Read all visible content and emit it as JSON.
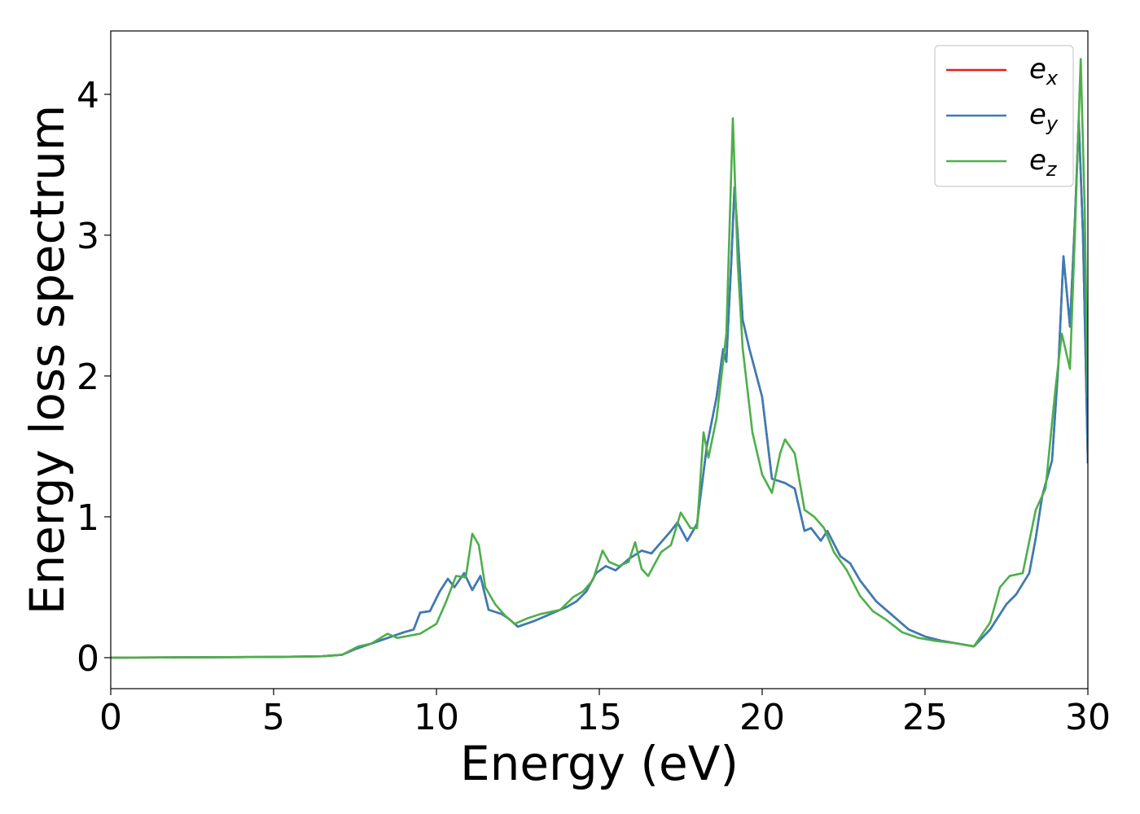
{
  "chart_data": {
    "type": "line",
    "title": "",
    "xlabel": "Energy (eV)",
    "ylabel": "Energy loss spectrum",
    "xlim": [
      0,
      30
    ],
    "ylim": [
      -0.22,
      4.45
    ],
    "xticks": [
      0,
      5,
      10,
      15,
      20,
      25,
      30
    ],
    "yticks": [
      0,
      1,
      2,
      3,
      4
    ],
    "grid": false,
    "legend_position": "top-right",
    "series": [
      {
        "name": "e_x",
        "label_base": "e",
        "label_sub": "x",
        "color": "#e41a1c",
        "points": [
          [
            0,
            0
          ],
          [
            5,
            0.005
          ],
          [
            6.5,
            0.01
          ],
          [
            7.1,
            0.02
          ],
          [
            7.5,
            0.06
          ],
          [
            8,
            0.1
          ],
          [
            8.5,
            0.14
          ],
          [
            9,
            0.18
          ],
          [
            9.3,
            0.2
          ],
          [
            9.5,
            0.32
          ],
          [
            9.8,
            0.33
          ],
          [
            10.1,
            0.47
          ],
          [
            10.35,
            0.56
          ],
          [
            10.55,
            0.5
          ],
          [
            10.85,
            0.6
          ],
          [
            11.1,
            0.48
          ],
          [
            11.35,
            0.58
          ],
          [
            11.6,
            0.34
          ],
          [
            12,
            0.31
          ],
          [
            12.2,
            0.28
          ],
          [
            12.5,
            0.22
          ],
          [
            13,
            0.26
          ],
          [
            13.5,
            0.31
          ],
          [
            14,
            0.36
          ],
          [
            14.3,
            0.4
          ],
          [
            14.6,
            0.47
          ],
          [
            14.9,
            0.6
          ],
          [
            15.2,
            0.65
          ],
          [
            15.5,
            0.62
          ],
          [
            15.9,
            0.7
          ],
          [
            16.3,
            0.76
          ],
          [
            16.6,
            0.74
          ],
          [
            16.9,
            0.82
          ],
          [
            17.2,
            0.9
          ],
          [
            17.4,
            0.96
          ],
          [
            17.7,
            0.83
          ],
          [
            18,
            0.95
          ],
          [
            18.3,
            1.5
          ],
          [
            18.6,
            1.85
          ],
          [
            18.8,
            2.19
          ],
          [
            18.9,
            2.1
          ],
          [
            19.05,
            2.8
          ],
          [
            19.15,
            3.34
          ],
          [
            19.25,
            3.0
          ],
          [
            19.4,
            2.4
          ],
          [
            19.6,
            2.2
          ],
          [
            20,
            1.85
          ],
          [
            20.3,
            1.27
          ],
          [
            20.7,
            1.24
          ],
          [
            21,
            1.2
          ],
          [
            21.3,
            0.9
          ],
          [
            21.5,
            0.92
          ],
          [
            21.8,
            0.83
          ],
          [
            22,
            0.9
          ],
          [
            22.4,
            0.72
          ],
          [
            22.7,
            0.67
          ],
          [
            23,
            0.55
          ],
          [
            23.5,
            0.4
          ],
          [
            24,
            0.3
          ],
          [
            24.5,
            0.2
          ],
          [
            25,
            0.15
          ],
          [
            25.5,
            0.12
          ],
          [
            26,
            0.1
          ],
          [
            26.5,
            0.08
          ],
          [
            27,
            0.2
          ],
          [
            27.5,
            0.38
          ],
          [
            27.8,
            0.45
          ],
          [
            28.2,
            0.6
          ],
          [
            28.4,
            0.85
          ],
          [
            28.6,
            1.15
          ],
          [
            28.9,
            1.4
          ],
          [
            29.1,
            2.1
          ],
          [
            29.25,
            2.85
          ],
          [
            29.45,
            2.35
          ],
          [
            29.6,
            3.1
          ],
          [
            29.72,
            3.82
          ],
          [
            29.85,
            3.0
          ],
          [
            30,
            1.38
          ]
        ]
      },
      {
        "name": "e_y",
        "label_base": "e",
        "label_sub": "y",
        "color": "#377eb8",
        "points": [
          [
            0,
            0
          ],
          [
            5,
            0.005
          ],
          [
            6.5,
            0.01
          ],
          [
            7.1,
            0.02
          ],
          [
            7.5,
            0.06
          ],
          [
            8,
            0.1
          ],
          [
            8.5,
            0.14
          ],
          [
            9,
            0.18
          ],
          [
            9.3,
            0.2
          ],
          [
            9.5,
            0.32
          ],
          [
            9.8,
            0.33
          ],
          [
            10.1,
            0.47
          ],
          [
            10.35,
            0.56
          ],
          [
            10.55,
            0.5
          ],
          [
            10.85,
            0.6
          ],
          [
            11.1,
            0.48
          ],
          [
            11.35,
            0.58
          ],
          [
            11.6,
            0.34
          ],
          [
            12,
            0.31
          ],
          [
            12.2,
            0.28
          ],
          [
            12.5,
            0.22
          ],
          [
            13,
            0.26
          ],
          [
            13.5,
            0.31
          ],
          [
            14,
            0.36
          ],
          [
            14.3,
            0.4
          ],
          [
            14.6,
            0.47
          ],
          [
            14.9,
            0.6
          ],
          [
            15.2,
            0.65
          ],
          [
            15.5,
            0.62
          ],
          [
            15.9,
            0.7
          ],
          [
            16.3,
            0.76
          ],
          [
            16.6,
            0.74
          ],
          [
            16.9,
            0.82
          ],
          [
            17.2,
            0.9
          ],
          [
            17.4,
            0.96
          ],
          [
            17.7,
            0.83
          ],
          [
            18,
            0.95
          ],
          [
            18.3,
            1.5
          ],
          [
            18.6,
            1.85
          ],
          [
            18.8,
            2.19
          ],
          [
            18.9,
            2.1
          ],
          [
            19.05,
            2.8
          ],
          [
            19.15,
            3.34
          ],
          [
            19.25,
            3.0
          ],
          [
            19.4,
            2.4
          ],
          [
            19.6,
            2.2
          ],
          [
            20,
            1.85
          ],
          [
            20.3,
            1.27
          ],
          [
            20.7,
            1.24
          ],
          [
            21,
            1.2
          ],
          [
            21.3,
            0.9
          ],
          [
            21.5,
            0.92
          ],
          [
            21.8,
            0.83
          ],
          [
            22,
            0.9
          ],
          [
            22.4,
            0.72
          ],
          [
            22.7,
            0.67
          ],
          [
            23,
            0.55
          ],
          [
            23.5,
            0.4
          ],
          [
            24,
            0.3
          ],
          [
            24.5,
            0.2
          ],
          [
            25,
            0.15
          ],
          [
            25.5,
            0.12
          ],
          [
            26,
            0.1
          ],
          [
            26.5,
            0.08
          ],
          [
            27,
            0.2
          ],
          [
            27.5,
            0.38
          ],
          [
            27.8,
            0.45
          ],
          [
            28.2,
            0.6
          ],
          [
            28.4,
            0.85
          ],
          [
            28.6,
            1.15
          ],
          [
            28.9,
            1.4
          ],
          [
            29.1,
            2.1
          ],
          [
            29.25,
            2.85
          ],
          [
            29.45,
            2.35
          ],
          [
            29.6,
            3.1
          ],
          [
            29.72,
            3.82
          ],
          [
            29.85,
            3.0
          ],
          [
            30,
            1.38
          ]
        ]
      },
      {
        "name": "e_z",
        "label_base": "e",
        "label_sub": "z",
        "color": "#4daf4a",
        "points": [
          [
            0,
            0
          ],
          [
            5,
            0.005
          ],
          [
            6.5,
            0.01
          ],
          [
            7.1,
            0.02
          ],
          [
            7.6,
            0.08
          ],
          [
            8,
            0.1
          ],
          [
            8.5,
            0.17
          ],
          [
            8.8,
            0.14
          ],
          [
            9.5,
            0.17
          ],
          [
            10,
            0.24
          ],
          [
            10.3,
            0.4
          ],
          [
            10.6,
            0.58
          ],
          [
            10.9,
            0.57
          ],
          [
            11.1,
            0.88
          ],
          [
            11.3,
            0.8
          ],
          [
            11.5,
            0.5
          ],
          [
            11.8,
            0.38
          ],
          [
            12.1,
            0.3
          ],
          [
            12.4,
            0.24
          ],
          [
            12.8,
            0.28
          ],
          [
            13.2,
            0.31
          ],
          [
            13.8,
            0.34
          ],
          [
            14.2,
            0.43
          ],
          [
            14.5,
            0.47
          ],
          [
            14.8,
            0.55
          ],
          [
            15.1,
            0.76
          ],
          [
            15.3,
            0.68
          ],
          [
            15.6,
            0.65
          ],
          [
            15.9,
            0.68
          ],
          [
            16.1,
            0.82
          ],
          [
            16.3,
            0.63
          ],
          [
            16.5,
            0.58
          ],
          [
            16.9,
            0.75
          ],
          [
            17.2,
            0.8
          ],
          [
            17.5,
            1.03
          ],
          [
            17.8,
            0.92
          ],
          [
            18.0,
            0.92
          ],
          [
            18.2,
            1.6
          ],
          [
            18.35,
            1.42
          ],
          [
            18.6,
            1.7
          ],
          [
            18.9,
            2.3
          ],
          [
            19.1,
            3.83
          ],
          [
            19.25,
            2.8
          ],
          [
            19.4,
            2.2
          ],
          [
            19.7,
            1.6
          ],
          [
            20,
            1.3
          ],
          [
            20.3,
            1.17
          ],
          [
            20.55,
            1.45
          ],
          [
            20.7,
            1.55
          ],
          [
            21,
            1.45
          ],
          [
            21.3,
            1.05
          ],
          [
            21.6,
            1.0
          ],
          [
            21.9,
            0.92
          ],
          [
            22.2,
            0.75
          ],
          [
            22.6,
            0.62
          ],
          [
            23,
            0.44
          ],
          [
            23.4,
            0.33
          ],
          [
            23.8,
            0.27
          ],
          [
            24.3,
            0.18
          ],
          [
            24.8,
            0.14
          ],
          [
            25.3,
            0.12
          ],
          [
            26,
            0.1
          ],
          [
            26.5,
            0.08
          ],
          [
            27,
            0.25
          ],
          [
            27.3,
            0.5
          ],
          [
            27.6,
            0.58
          ],
          [
            28,
            0.6
          ],
          [
            28.4,
            1.05
          ],
          [
            28.7,
            1.2
          ],
          [
            29.0,
            1.9
          ],
          [
            29.2,
            2.3
          ],
          [
            29.45,
            2.05
          ],
          [
            29.6,
            3.0
          ],
          [
            29.78,
            4.25
          ],
          [
            29.9,
            3.2
          ],
          [
            30,
            1.85
          ]
        ]
      }
    ]
  }
}
